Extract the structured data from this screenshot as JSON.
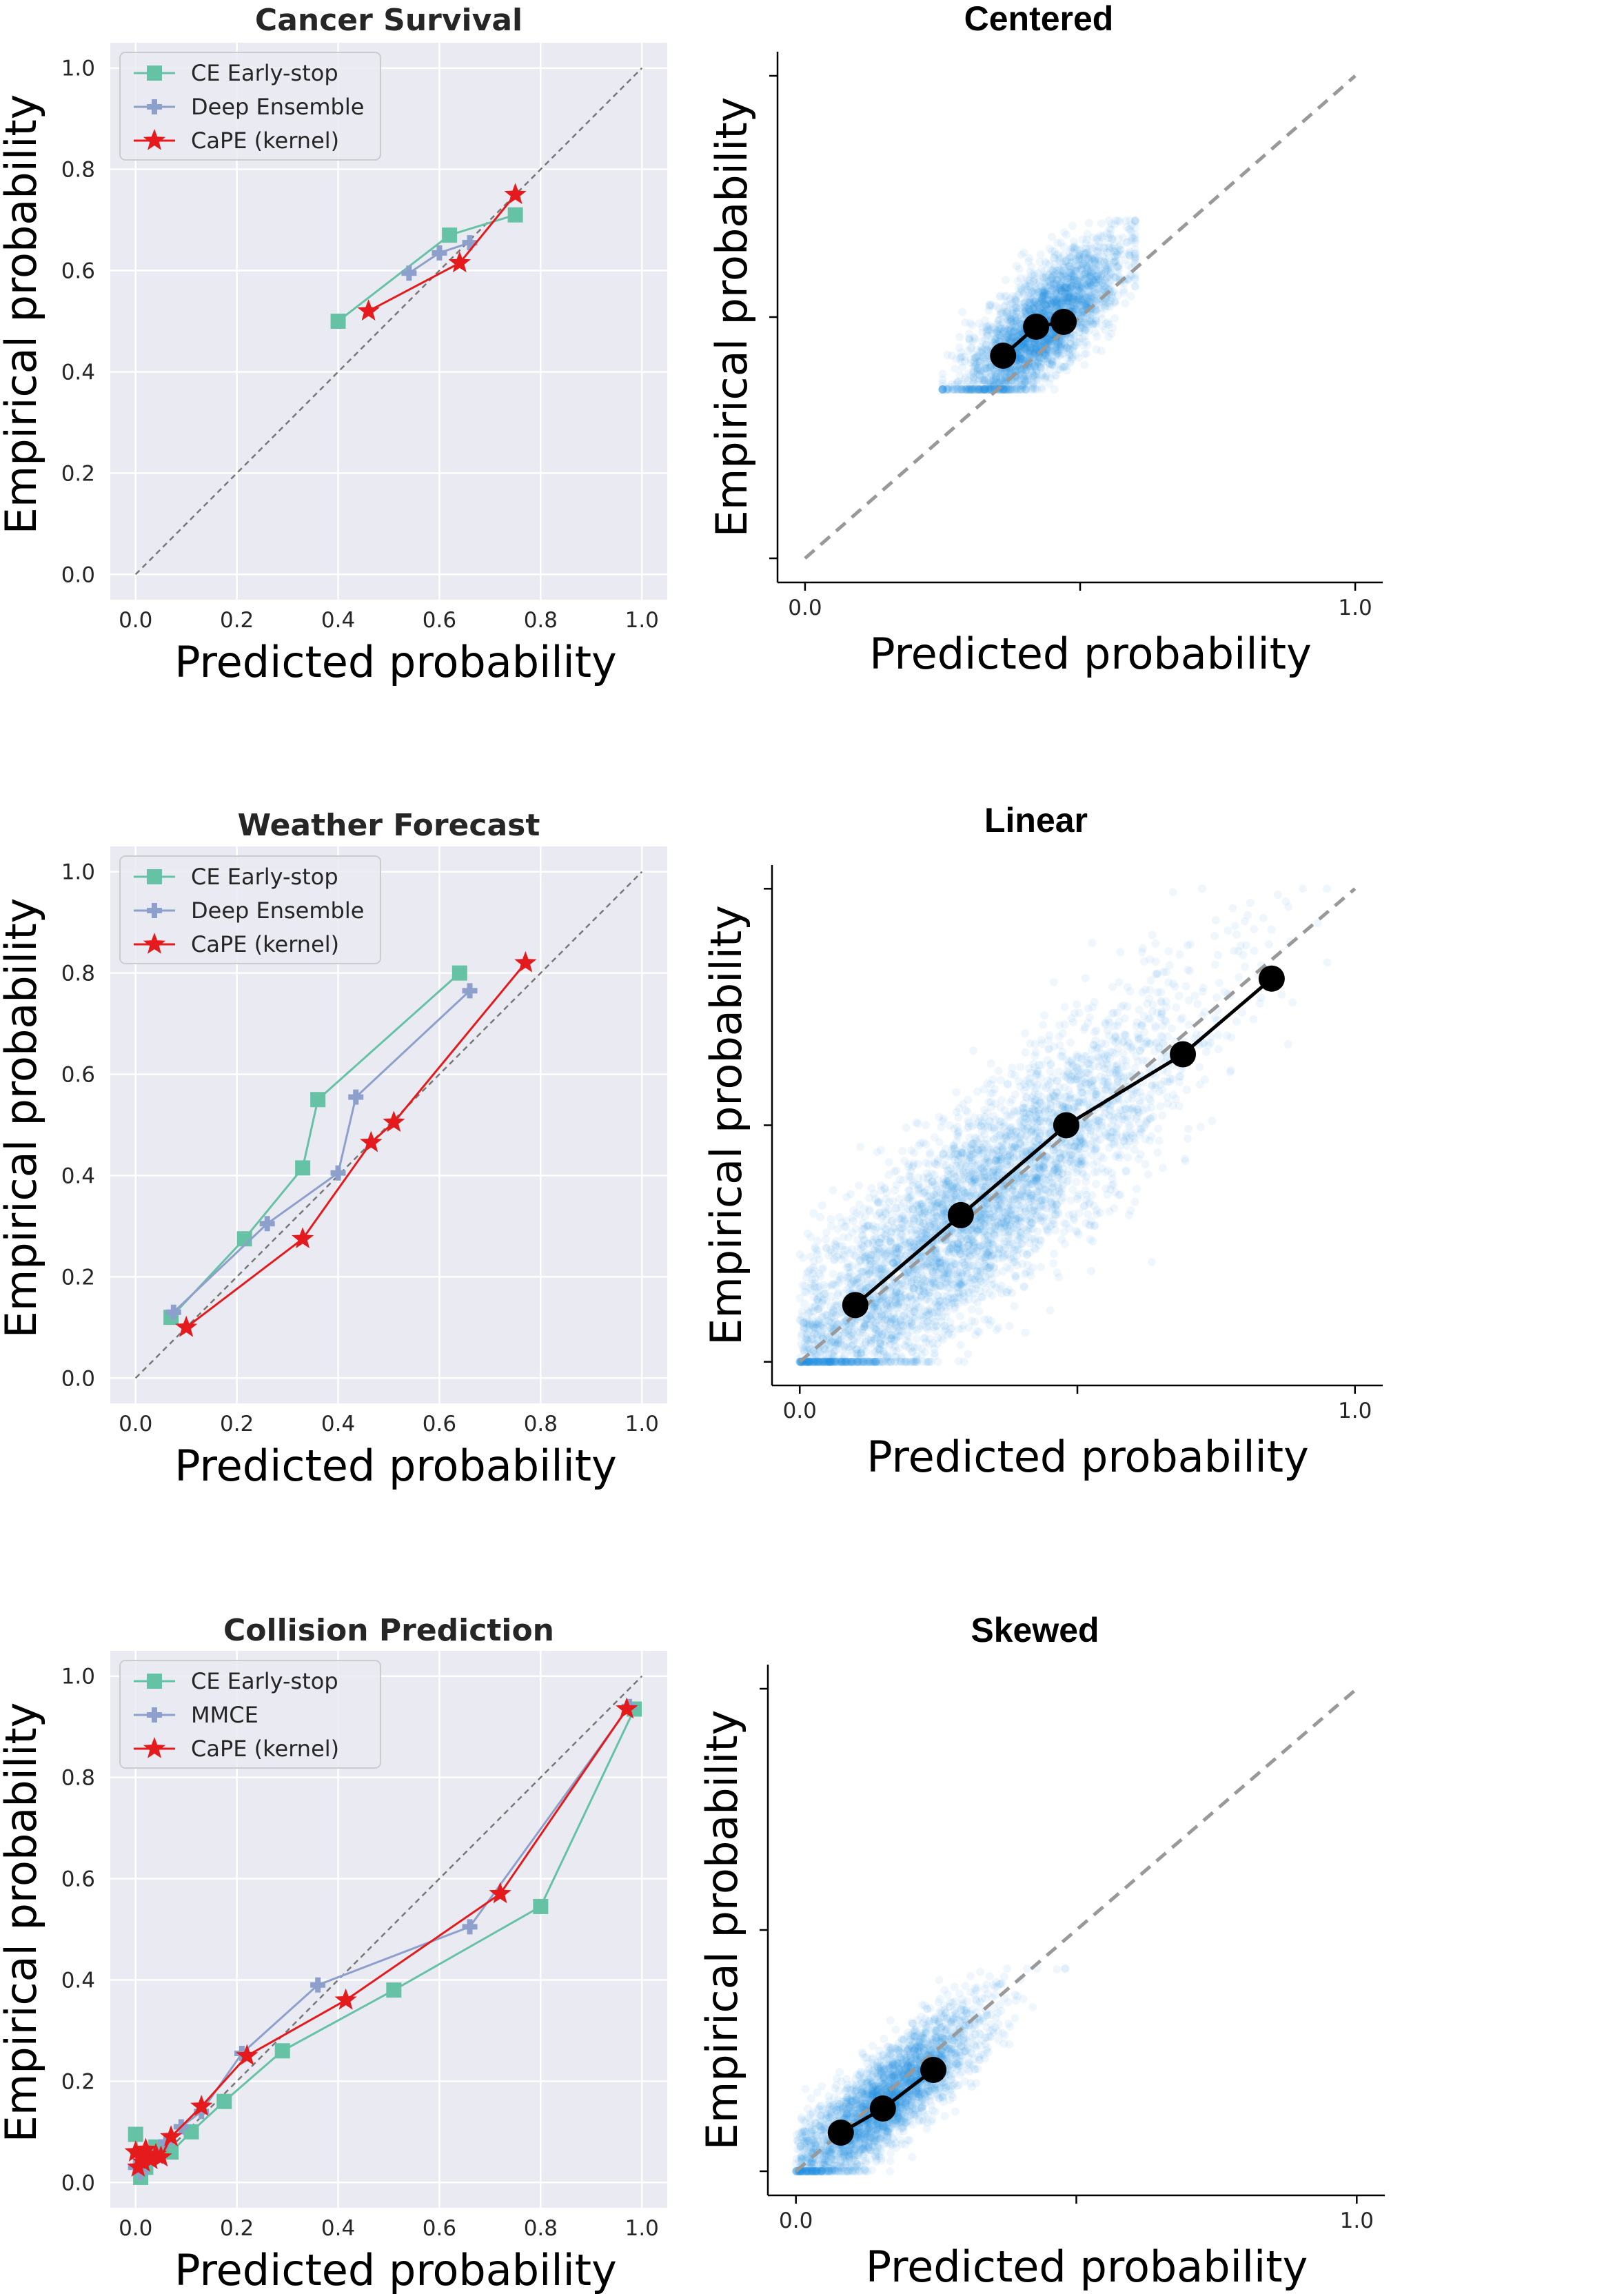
{
  "chart_data": [
    {
      "type": "line",
      "title": "Cancer Survival",
      "xlabel": "Predicted probability",
      "ylabel": "Empirical probability",
      "xlim": [
        -0.05,
        1.05
      ],
      "ylim": [
        -0.05,
        1.05
      ],
      "xticks": [
        "0.0",
        "0.2",
        "0.4",
        "0.6",
        "0.8",
        "1.0"
      ],
      "yticks": [
        "0.0",
        "0.2",
        "0.4",
        "0.6",
        "0.8",
        "1.0"
      ],
      "grid": true,
      "legend": "top-left",
      "reference_line": "diagonal, dashed gray",
      "series": [
        {
          "name": "CE Early-stop",
          "color": "#66c2a5",
          "marker": "square",
          "x": [
            0.4,
            0.62,
            0.75
          ],
          "y": [
            0.5,
            0.67,
            0.71
          ]
        },
        {
          "name": "Deep Ensemble",
          "color": "#8da0cb",
          "marker": "plus",
          "x": [
            0.54,
            0.6,
            0.66
          ],
          "y": [
            0.595,
            0.635,
            0.655
          ]
        },
        {
          "name": "CaPE (kernel)",
          "color": "#e41a1c",
          "marker": "star",
          "x": [
            0.46,
            0.64,
            0.75
          ],
          "y": [
            0.52,
            0.615,
            0.75
          ]
        }
      ]
    },
    {
      "type": "scatter",
      "title": "Centered",
      "xlabel": "Predicted probability",
      "ylabel": "Empirical probability",
      "xlim": [
        -0.05,
        1.05
      ],
      "ylim": [
        -0.05,
        1.05
      ],
      "xticks": [
        "0.0",
        "",
        "1.0"
      ],
      "grid": false,
      "cloud": {
        "color": "#1e88e5",
        "x_range": [
          0.25,
          0.6
        ],
        "y_range": [
          0.35,
          0.7
        ]
      },
      "points": {
        "x": [
          0.36,
          0.42,
          0.47
        ],
        "y": [
          0.42,
          0.48,
          0.49
        ]
      }
    },
    {
      "type": "line",
      "title": "Weather Forecast",
      "xlabel": "Predicted probability",
      "ylabel": "Empirical probability",
      "xlim": [
        -0.05,
        1.05
      ],
      "ylim": [
        -0.05,
        1.05
      ],
      "xticks": [
        "0.0",
        "0.2",
        "0.4",
        "0.6",
        "0.8",
        "1.0"
      ],
      "yticks": [
        "0.0",
        "0.2",
        "0.4",
        "0.6",
        "0.8",
        "1.0"
      ],
      "grid": true,
      "legend": "top-left",
      "reference_line": "diagonal, dashed gray",
      "series": [
        {
          "name": "CE Early-stop",
          "color": "#66c2a5",
          "marker": "square",
          "x": [
            0.07,
            0.215,
            0.33,
            0.36,
            0.64
          ],
          "y": [
            0.12,
            0.275,
            0.415,
            0.55,
            0.8
          ]
        },
        {
          "name": "Deep Ensemble",
          "color": "#8da0cb",
          "marker": "plus",
          "x": [
            0.075,
            0.26,
            0.4,
            0.435,
            0.66
          ],
          "y": [
            0.13,
            0.305,
            0.405,
            0.555,
            0.765
          ]
        },
        {
          "name": "CaPE (kernel)",
          "color": "#e41a1c",
          "marker": "star",
          "x": [
            0.1,
            0.33,
            0.465,
            0.51,
            0.77
          ],
          "y": [
            0.1,
            0.275,
            0.465,
            0.505,
            0.82
          ]
        }
      ]
    },
    {
      "type": "scatter",
      "title": "Linear",
      "xlabel": "Predicted probability",
      "ylabel": "Empirical probability",
      "xlim": [
        -0.05,
        1.05
      ],
      "ylim": [
        -0.05,
        1.05
      ],
      "xticks": [
        "0.0",
        "",
        "1.0"
      ],
      "grid": false,
      "cloud": {
        "color": "#1e88e5",
        "x_range": [
          0.0,
          1.0
        ],
        "y_range": [
          0.0,
          1.0
        ]
      },
      "points": {
        "x": [
          0.1,
          0.29,
          0.48,
          0.69,
          0.85
        ],
        "y": [
          0.12,
          0.31,
          0.5,
          0.65,
          0.81
        ]
      }
    },
    {
      "type": "line",
      "title": "Collision Prediction",
      "xlabel": "Predicted probability",
      "ylabel": "Empirical probability",
      "xlim": [
        -0.05,
        1.05
      ],
      "ylim": [
        -0.05,
        1.05
      ],
      "xticks": [
        "0.0",
        "0.2",
        "0.4",
        "0.6",
        "0.8",
        "1.0"
      ],
      "yticks": [
        "0.0",
        "0.2",
        "0.4",
        "0.6",
        "0.8",
        "1.0"
      ],
      "grid": true,
      "legend": "top-left",
      "reference_line": "diagonal, dashed gray",
      "series": [
        {
          "name": "CE Early-stop",
          "color": "#66c2a5",
          "marker": "square",
          "x": [
            0.0,
            0.01,
            0.02,
            0.04,
            0.07,
            0.11,
            0.175,
            0.29,
            0.51,
            0.8,
            0.985
          ],
          "y": [
            0.095,
            0.01,
            0.03,
            0.07,
            0.06,
            0.1,
            0.16,
            0.26,
            0.38,
            0.545,
            0.935
          ]
        },
        {
          "name": "MMCE",
          "color": "#8da0cb",
          "marker": "plus",
          "x": [
            0.0,
            0.01,
            0.03,
            0.06,
            0.09,
            0.13,
            0.21,
            0.36,
            0.66,
            0.975
          ],
          "y": [
            0.03,
            0.02,
            0.05,
            0.08,
            0.11,
            0.14,
            0.255,
            0.39,
            0.505,
            0.94
          ]
        },
        {
          "name": "CaPE (kernel)",
          "color": "#e41a1c",
          "marker": "star",
          "x": [
            0.0,
            0.005,
            0.01,
            0.015,
            0.02,
            0.03,
            0.04,
            0.05,
            0.07,
            0.13,
            0.22,
            0.415,
            0.72,
            0.97
          ],
          "y": [
            0.06,
            0.03,
            0.05,
            0.04,
            0.065,
            0.045,
            0.055,
            0.05,
            0.09,
            0.15,
            0.25,
            0.36,
            0.57,
            0.935
          ]
        }
      ]
    },
    {
      "type": "scatter",
      "title": "Skewed",
      "xlabel": "Predicted probability",
      "ylabel": "Empirical probability",
      "xlim": [
        -0.05,
        1.05
      ],
      "ylim": [
        -0.05,
        1.05
      ],
      "xticks": [
        "0.0",
        "",
        "1.0"
      ],
      "grid": false,
      "cloud": {
        "color": "#1e88e5",
        "x_range": [
          0.0,
          0.5
        ],
        "y_range": [
          0.0,
          0.45
        ]
      },
      "points": {
        "x": [
          0.08,
          0.155,
          0.245
        ],
        "y": [
          0.08,
          0.13,
          0.21
        ]
      }
    }
  ]
}
